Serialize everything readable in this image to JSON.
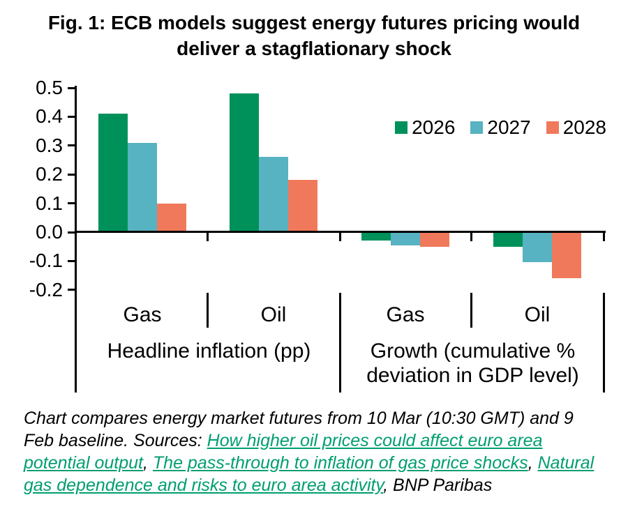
{
  "chart_data": {
    "type": "bar",
    "title": "Fig. 1: ECB models suggest energy futures pricing would\ndeliver a stagflationary shock",
    "categories": [
      "Gas",
      "Oil",
      "Gas",
      "Oil"
    ],
    "group_labels": [
      "Headline inflation (pp)",
      "Growth (cumulative %\ndeviation in GDP level)"
    ],
    "series": [
      {
        "name": "2026",
        "color": "#00915A",
        "values": [
          0.41,
          0.48,
          -0.03,
          -0.05
        ]
      },
      {
        "name": "2027",
        "color": "#57B2C1",
        "values": [
          0.31,
          0.26,
          -0.045,
          -0.105
        ]
      },
      {
        "name": "2028",
        "color": "#F0795C",
        "values": [
          0.1,
          0.18,
          -0.05,
          -0.16
        ]
      }
    ],
    "ylim": [
      -0.2,
      0.5
    ],
    "yticks": [
      0.5,
      0.4,
      0.3,
      0.2,
      0.1,
      0.0,
      -0.1,
      -0.2
    ],
    "ytick_labels": [
      "0.5",
      "0.4",
      "0.3",
      "0.2",
      "0.1",
      "0.0",
      "-0.1",
      "-0.2"
    ],
    "legend_position": "upper right",
    "grid": false
  },
  "colors": {
    "series_2026": "#00915A",
    "series_2027": "#57B2C1",
    "series_2028": "#F0795C",
    "link_green": "#009E70",
    "axis": "#000000"
  },
  "footer": {
    "segments": [
      {
        "type": "text",
        "text": "Chart compares energy market futures from 10 Mar (10:30 GMT) and 9 Feb baseline. Sources: "
      },
      {
        "type": "link",
        "text": "How higher oil prices could affect euro area potential output"
      },
      {
        "type": "text",
        "text": ", "
      },
      {
        "type": "link",
        "text": "The pass-through to inflation of gas price shocks"
      },
      {
        "type": "text",
        "text": ", "
      },
      {
        "type": "link",
        "text": "Natural gas dependence and risks to euro area activity"
      },
      {
        "type": "text",
        "text": ", BNP Paribas"
      }
    ]
  }
}
